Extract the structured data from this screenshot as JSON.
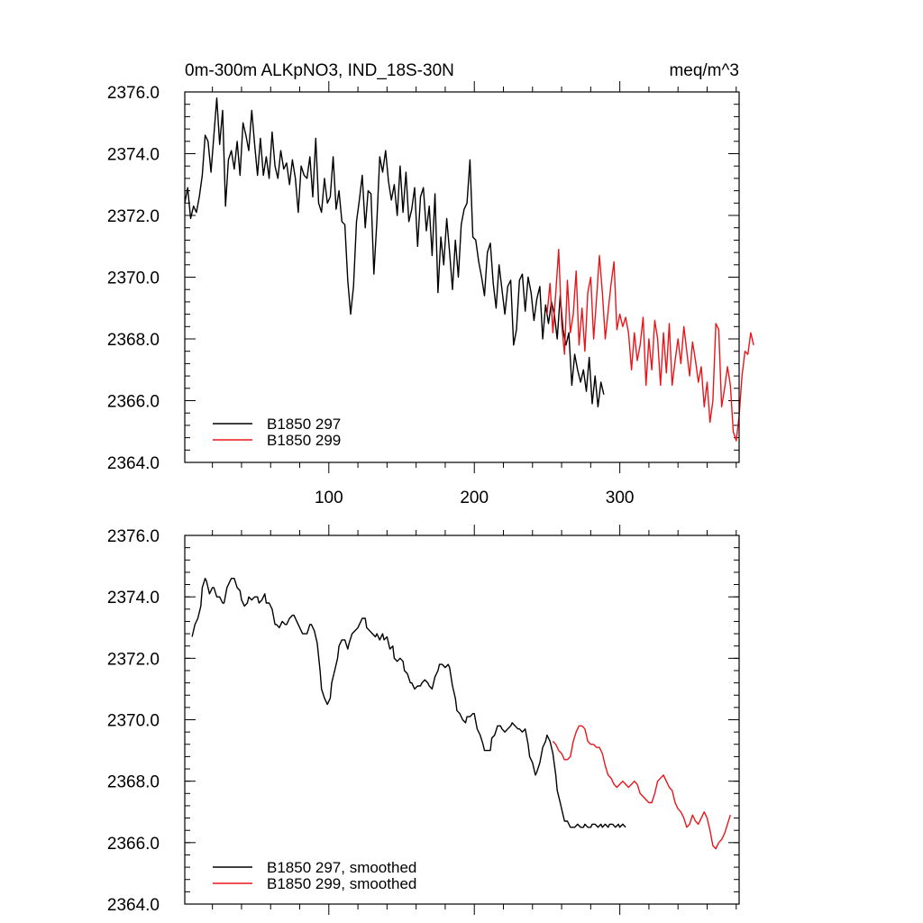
{
  "colors": {
    "series_1": "#000000",
    "series_2": "#e8161b",
    "axis": "#000000",
    "background": "#ffffff"
  },
  "chart_data": [
    {
      "type": "line",
      "title": "0m-300m ALKpNO3, IND_18S-30N",
      "units": "meq/m^3",
      "xlim": [
        1,
        382
      ],
      "ylim": [
        2364,
        2376
      ],
      "xticks": [
        100,
        200,
        300
      ],
      "xtick_labels": [
        "100",
        "200",
        "300"
      ],
      "yticks": [
        2364,
        2366,
        2368,
        2370,
        2372,
        2374,
        2376
      ],
      "ytick_labels": [
        "2364.0",
        "2366.0",
        "2368.0",
        "2370.0",
        "2372.0",
        "2374.0",
        "2376.0"
      ],
      "grid": false,
      "legend_position": "bottom-left",
      "series": [
        {
          "name": "B1850 297",
          "color": "#000000",
          "x_start": 1,
          "x_step": 2,
          "values": [
            2372.4,
            2372.9,
            2371.9,
            2372.3,
            2372.1,
            2372.6,
            2373.3,
            2374.6,
            2374.4,
            2373.4,
            2374.6,
            2375.8,
            2374.3,
            2375.4,
            2372.3,
            2373.8,
            2374.1,
            2373.5,
            2374.4,
            2373.3,
            2375.0,
            2374.6,
            2374.1,
            2375.4,
            2374.3,
            2373.3,
            2374.5,
            2373.3,
            2373.9,
            2373.2,
            2374.7,
            2373.6,
            2373.2,
            2374.1,
            2373.5,
            2373.7,
            2373.0,
            2373.8,
            2373.2,
            2372.1,
            2373.6,
            2373.3,
            2373.2,
            2373.9,
            2372.6,
            2374.5,
            2372.4,
            2372.1,
            2373.2,
            2372.4,
            2372.6,
            2373.9,
            2372.2,
            2372.8,
            2371.8,
            2371.7,
            2369.9,
            2368.8,
            2369.7,
            2371.8,
            2372.5,
            2373.3,
            2371.6,
            2372.8,
            2372.7,
            2370.1,
            2371.8,
            2373.9,
            2373.4,
            2374.1,
            2373.1,
            2372.5,
            2373.0,
            2372.0,
            2373.6,
            2372.1,
            2373.4,
            2371.8,
            2372.2,
            2372.9,
            2371.0,
            2372.6,
            2372.9,
            2371.5,
            2372.3,
            2370.7,
            2372.7,
            2369.5,
            2371.3,
            2370.4,
            2371.9,
            2370.8,
            2369.6,
            2371.2,
            2370.0,
            2371.7,
            2372.2,
            2372.4,
            2373.8,
            2371.3,
            2371.2,
            2370.5,
            2370.0,
            2369.4,
            2370.8,
            2371.1,
            2369.8,
            2369.0,
            2370.4,
            2369.6,
            2368.8,
            2369.7,
            2369.9,
            2367.8,
            2368.3,
            2369.9,
            2370.1,
            2368.9,
            2370.0,
            2369.5,
            2368.6,
            2369.3,
            2369.7,
            2368.0,
            2369.1,
            2368.5,
            2369.2,
            2368.8,
            2368.0,
            2369.4,
            2368.3,
            2367.8,
            2368.2,
            2366.5,
            2367.5,
            2367.0,
            2366.6,
            2367.0,
            2366.3,
            2367.4,
            2365.9,
            2366.8,
            2365.8,
            2366.6,
            2366.2
          ]
        },
        {
          "name": "B1850 299",
          "color": "#e8161b",
          "x_start": 250,
          "x_step": 2,
          "values": [
            2368.8,
            2369.8,
            2368.2,
            2369.5,
            2370.9,
            2368.5,
            2367.5,
            2369.9,
            2368.2,
            2368.8,
            2370.2,
            2367.8,
            2369.0,
            2367.6,
            2369.5,
            2370.0,
            2368.0,
            2369.3,
            2370.7,
            2369.5,
            2368.0,
            2368.9,
            2369.8,
            2370.5,
            2368.3,
            2368.8,
            2368.4,
            2368.7,
            2368.2,
            2367.0,
            2368.2,
            2367.3,
            2367.8,
            2368.7,
            2366.5,
            2368.0,
            2367.0,
            2368.6,
            2368.0,
            2366.5,
            2368.2,
            2366.9,
            2368.5,
            2366.5,
            2367.3,
            2368.0,
            2367.2,
            2368.4,
            2367.6,
            2366.8,
            2367.9,
            2367.3,
            2366.6,
            2367.1,
            2365.8,
            2366.6,
            2365.3,
            2366.0,
            2368.5,
            2368.3,
            2365.8,
            2366.4,
            2367.1,
            2366.5,
            2365.0,
            2364.7,
            2365.5,
            2366.8,
            2367.6,
            2367.5,
            2368.2,
            2367.8
          ]
        }
      ]
    },
    {
      "type": "line",
      "xlim": [
        1,
        382
      ],
      "ylim": [
        2364,
        2376
      ],
      "xticks": [
        100,
        200,
        300
      ],
      "yticks": [
        2364,
        2366,
        2368,
        2370,
        2372,
        2374,
        2376
      ],
      "ytick_labels": [
        "2364.0",
        "2366.0",
        "2368.0",
        "2370.0",
        "2372.0",
        "2374.0",
        "2376.0"
      ],
      "grid": false,
      "legend_position": "bottom-left",
      "series": [
        {
          "name": "B1850 297, smoothed",
          "color": "#000000",
          "x": [
            6,
            8,
            10,
            12,
            13,
            15,
            16,
            18,
            20,
            21,
            23,
            25,
            27,
            28,
            30,
            32,
            33,
            35,
            37,
            39,
            40,
            42,
            44,
            45,
            47,
            49,
            51,
            52,
            54,
            56,
            57,
            59,
            61,
            63,
            64,
            66,
            68,
            70,
            71,
            73,
            75,
            76,
            78,
            80,
            82,
            83,
            85,
            87,
            88,
            90,
            92,
            94,
            95,
            97,
            99,
            101,
            102,
            104,
            106,
            107,
            109,
            111,
            113,
            114,
            116,
            118,
            120,
            121,
            123,
            125,
            126,
            128,
            130,
            132,
            133,
            135,
            137,
            138,
            140,
            142,
            144,
            145,
            147,
            149,
            151,
            152,
            154,
            156,
            157,
            159,
            161,
            163,
            164,
            166,
            168,
            169,
            171,
            173,
            175,
            176,
            178,
            180,
            182,
            183,
            185,
            187,
            188,
            190,
            192,
            194,
            195,
            197,
            199,
            200,
            202,
            204,
            206,
            207,
            209,
            211,
            212,
            214,
            216,
            218,
            219,
            221,
            223,
            225,
            226,
            228,
            230,
            231,
            233,
            235,
            237,
            238,
            240,
            242,
            243,
            245,
            247,
            249,
            250,
            252,
            254,
            256,
            257,
            259,
            261,
            262,
            264,
            266,
            268,
            269,
            271,
            273,
            275,
            276,
            278,
            280,
            281,
            283,
            285,
            287,
            288,
            290,
            292,
            293,
            295,
            297,
            299,
            300,
            302,
            304
          ],
          "values": [
            2372.7,
            2373.1,
            2373.3,
            2373.7,
            2374.3,
            2374.6,
            2374.5,
            2374.1,
            2374.3,
            2374.3,
            2374.0,
            2374.0,
            2373.8,
            2373.8,
            2374.3,
            2374.5,
            2374.6,
            2374.6,
            2374.3,
            2374.2,
            2373.9,
            2373.7,
            2373.8,
            2374.0,
            2373.9,
            2374.0,
            2374.0,
            2373.8,
            2373.9,
            2374.1,
            2373.8,
            2373.8,
            2373.6,
            2373.1,
            2373.1,
            2373.0,
            2373.2,
            2373.1,
            2373.1,
            2373.3,
            2373.4,
            2373.4,
            2373.2,
            2373.0,
            2372.8,
            2372.8,
            2372.8,
            2373.1,
            2373.1,
            2372.9,
            2372.5,
            2371.6,
            2371.0,
            2370.7,
            2370.5,
            2370.7,
            2371.2,
            2371.6,
            2372.0,
            2372.4,
            2372.6,
            2372.6,
            2372.3,
            2372.5,
            2372.8,
            2372.9,
            2373.0,
            2373.1,
            2373.3,
            2373.3,
            2373.0,
            2372.9,
            2372.8,
            2372.7,
            2372.8,
            2372.6,
            2372.8,
            2372.6,
            2372.7,
            2372.3,
            2372.4,
            2372.0,
            2371.9,
            2372.0,
            2371.9,
            2371.6,
            2371.5,
            2371.2,
            2371.2,
            2371.0,
            2371.1,
            2371.1,
            2371.2,
            2371.3,
            2371.2,
            2371.1,
            2371.0,
            2371.4,
            2371.6,
            2371.8,
            2371.8,
            2371.7,
            2371.8,
            2371.7,
            2371.1,
            2370.7,
            2370.3,
            2370.2,
            2370.0,
            2369.9,
            2370.1,
            2370.1,
            2370.2,
            2370.2,
            2369.7,
            2369.5,
            2369.2,
            2369.0,
            2369.0,
            2369.0,
            2369.4,
            2369.5,
            2369.8,
            2369.8,
            2369.7,
            2369.6,
            2369.7,
            2369.8,
            2369.9,
            2369.8,
            2369.7,
            2369.7,
            2369.6,
            2369.7,
            2369.2,
            2368.8,
            2368.6,
            2368.2,
            2368.3,
            2368.6,
            2369.1,
            2369.3,
            2369.5,
            2369.3,
            2368.9,
            2368.2,
            2367.7,
            2367.3,
            2366.9,
            2366.7,
            2366.7,
            2366.5,
            2366.5,
            2366.5,
            2366.6,
            2366.5,
            2366.5,
            2366.6,
            2366.5,
            2366.5,
            2366.6,
            2366.6,
            2366.5,
            2366.6,
            2366.5,
            2366.6,
            2366.5,
            2366.6,
            2366.6,
            2366.5,
            2366.6,
            2366.5,
            2366.6,
            2366.5
          ]
        },
        {
          "name": "B1850 299, smoothed",
          "color": "#e8161b",
          "x": [
            254,
            256,
            258,
            260,
            262,
            264,
            266,
            268,
            270,
            272,
            274,
            276,
            278,
            280,
            282,
            284,
            286,
            288,
            290,
            292,
            294,
            296,
            298,
            300,
            302,
            304,
            306,
            308,
            310,
            312,
            314,
            316,
            318,
            320,
            322,
            324,
            326,
            328,
            330,
            332,
            334,
            336,
            338,
            340,
            342,
            344,
            346,
            348,
            350,
            352,
            354,
            356,
            358,
            360,
            362,
            364,
            366,
            368,
            370,
            372,
            374,
            376
          ],
          "values": [
            2369.3,
            2369.2,
            2369.0,
            2368.9,
            2368.7,
            2368.7,
            2368.8,
            2369.3,
            2369.6,
            2369.8,
            2369.8,
            2369.7,
            2369.3,
            2369.2,
            2369.2,
            2369.1,
            2369.1,
            2368.9,
            2368.5,
            2368.2,
            2368.1,
            2367.9,
            2367.8,
            2367.9,
            2368.0,
            2367.9,
            2367.8,
            2367.9,
            2368.0,
            2367.9,
            2367.6,
            2367.5,
            2367.4,
            2367.3,
            2367.3,
            2367.6,
            2368.0,
            2368.1,
            2368.2,
            2368.0,
            2367.8,
            2367.7,
            2367.3,
            2367.1,
            2367.0,
            2366.8,
            2366.5,
            2366.6,
            2366.9,
            2366.7,
            2366.6,
            2366.8,
            2367.0,
            2366.8,
            2366.4,
            2365.9,
            2365.8,
            2366.0,
            2366.1,
            2366.3,
            2366.6,
            2366.9
          ]
        }
      ]
    }
  ]
}
